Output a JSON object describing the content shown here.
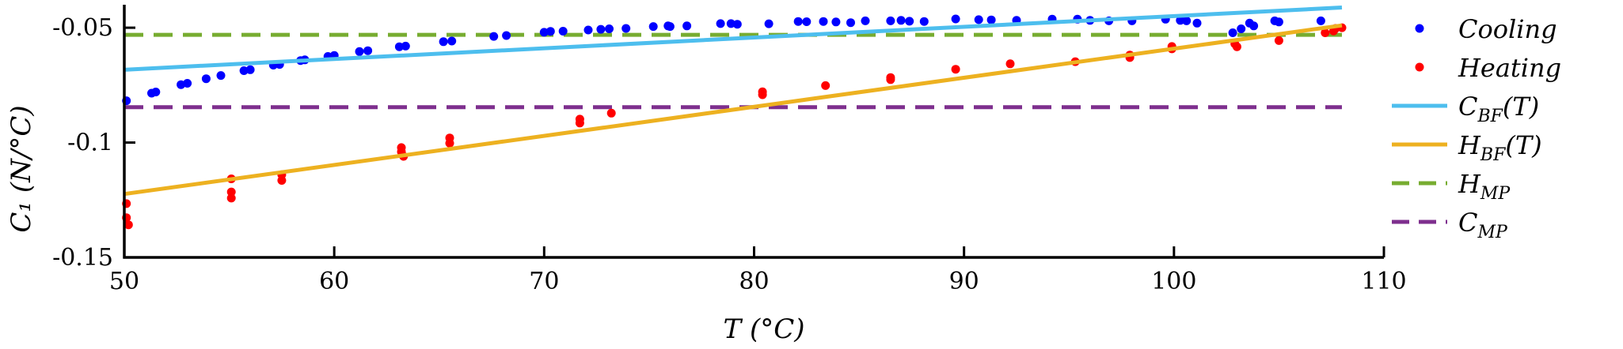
{
  "chart_data": {
    "type": "scatter",
    "xlabel": "T (°C)",
    "ylabel": "C₁ (N/°C)",
    "xlim": [
      50,
      110
    ],
    "ylim": [
      -0.15,
      -0.04
    ],
    "x_ticks": [
      50,
      60,
      70,
      80,
      90,
      100,
      110
    ],
    "y_ticks": [
      -0.05,
      -0.1,
      -0.15
    ],
    "x_tick_labels": [
      "50",
      "60",
      "70",
      "80",
      "90",
      "100",
      "110"
    ],
    "y_tick_labels": [
      "-0.05",
      "-0.1",
      "-0.15"
    ],
    "grid": false,
    "legend_position": "outside-right",
    "series": [
      {
        "name": "Cooling",
        "kind": "scatter",
        "color": "#0000ff",
        "points": [
          [
            50.1,
            -0.0818
          ],
          [
            51.3,
            -0.0785
          ],
          [
            51.5,
            -0.078
          ],
          [
            52.7,
            -0.0748
          ],
          [
            53.0,
            -0.0742
          ],
          [
            53.9,
            -0.0722
          ],
          [
            54.6,
            -0.0708
          ],
          [
            55.7,
            -0.0687
          ],
          [
            56.0,
            -0.0683
          ],
          [
            57.1,
            -0.0663
          ],
          [
            57.4,
            -0.066
          ],
          [
            58.4,
            -0.0643
          ],
          [
            58.6,
            -0.064
          ],
          [
            59.7,
            -0.0625
          ],
          [
            60.0,
            -0.0621
          ],
          [
            61.2,
            -0.0604
          ],
          [
            61.6,
            -0.06
          ],
          [
            63.1,
            -0.0583
          ],
          [
            63.4,
            -0.058
          ],
          [
            65.2,
            -0.0561
          ],
          [
            65.6,
            -0.0558
          ],
          [
            67.6,
            -0.0538
          ],
          [
            68.2,
            -0.0534
          ],
          [
            70.0,
            -0.052
          ],
          [
            70.3,
            -0.0516
          ],
          [
            70.9,
            -0.0515
          ],
          [
            72.1,
            -0.051
          ],
          [
            72.7,
            -0.0507
          ],
          [
            73.1,
            -0.0505
          ],
          [
            73.9,
            -0.0503
          ],
          [
            75.2,
            -0.0495
          ],
          [
            75.9,
            -0.0492
          ],
          [
            76.0,
            -0.0495
          ],
          [
            76.8,
            -0.0492
          ],
          [
            78.4,
            -0.0482
          ],
          [
            78.9,
            -0.0482
          ],
          [
            79.2,
            -0.0485
          ],
          [
            80.7,
            -0.0483
          ],
          [
            82.1,
            -0.0473
          ],
          [
            82.5,
            -0.0474
          ],
          [
            83.3,
            -0.0473
          ],
          [
            83.9,
            -0.0475
          ],
          [
            84.6,
            -0.0478
          ],
          [
            85.3,
            -0.047
          ],
          [
            86.5,
            -0.047
          ],
          [
            87.0,
            -0.0468
          ],
          [
            87.4,
            -0.0472
          ],
          [
            88.1,
            -0.0473
          ],
          [
            89.6,
            -0.0462
          ],
          [
            90.7,
            -0.0465
          ],
          [
            91.3,
            -0.0466
          ],
          [
            92.5,
            -0.0468
          ],
          [
            94.2,
            -0.0463
          ],
          [
            95.4,
            -0.0463
          ],
          [
            96.0,
            -0.0468
          ],
          [
            96.9,
            -0.047
          ],
          [
            98.0,
            -0.047
          ],
          [
            99.6,
            -0.0463
          ],
          [
            100.3,
            -0.0468
          ],
          [
            100.6,
            -0.047
          ],
          [
            101.1,
            -0.048
          ],
          [
            102.8,
            -0.0522
          ],
          [
            103.2,
            -0.0505
          ],
          [
            103.6,
            -0.048
          ],
          [
            103.8,
            -0.0492
          ],
          [
            104.8,
            -0.047
          ],
          [
            105.0,
            -0.0475
          ],
          [
            107.0,
            -0.047
          ]
        ]
      },
      {
        "name": "Heating",
        "kind": "scatter",
        "color": "#ff0000",
        "points": [
          [
            50.1,
            -0.1266
          ],
          [
            50.1,
            -0.1327
          ],
          [
            50.2,
            -0.1358
          ],
          [
            55.1,
            -0.1158
          ],
          [
            55.1,
            -0.1215
          ],
          [
            55.1,
            -0.1242
          ],
          [
            57.5,
            -0.114
          ],
          [
            57.5,
            -0.1165
          ],
          [
            63.2,
            -0.1022
          ],
          [
            63.2,
            -0.104
          ],
          [
            63.3,
            -0.106
          ],
          [
            65.5,
            -0.098
          ],
          [
            65.5,
            -0.1003
          ],
          [
            71.7,
            -0.0898
          ],
          [
            71.7,
            -0.0915
          ],
          [
            73.2,
            -0.0872
          ],
          [
            80.4,
            -0.0779
          ],
          [
            80.4,
            -0.0792
          ],
          [
            83.4,
            -0.0752
          ],
          [
            86.5,
            -0.0717
          ],
          [
            86.5,
            -0.0726
          ],
          [
            89.6,
            -0.0681
          ],
          [
            92.2,
            -0.0657
          ],
          [
            95.3,
            -0.0648
          ],
          [
            97.9,
            -0.0619
          ],
          [
            97.9,
            -0.063
          ],
          [
            99.9,
            -0.0582
          ],
          [
            99.9,
            -0.0592
          ],
          [
            102.9,
            -0.057
          ],
          [
            103.0,
            -0.0583
          ],
          [
            105.0,
            -0.0556
          ],
          [
            107.2,
            -0.0522
          ],
          [
            107.6,
            -0.0514
          ],
          [
            107.7,
            -0.0503
          ],
          [
            108.0,
            -0.05
          ]
        ]
      },
      {
        "name": "C_BF(T)",
        "kind": "line",
        "style": "solid",
        "color": "#4dbeee",
        "points": [
          [
            50,
            -0.0683
          ],
          [
            108,
            -0.0412
          ]
        ]
      },
      {
        "name": "H_BF(T)",
        "kind": "line",
        "style": "solid",
        "color": "#edb120",
        "points": [
          [
            50,
            -0.1224
          ],
          [
            108,
            -0.049
          ]
        ]
      },
      {
        "name": "H_MP",
        "kind": "line",
        "style": "dashed",
        "color": "#77ac30",
        "points": [
          [
            50,
            -0.0531
          ],
          [
            108,
            -0.0531
          ]
        ]
      },
      {
        "name": "C_MP",
        "kind": "line",
        "style": "dashed",
        "color": "#7e2f8e",
        "points": [
          [
            50,
            -0.0846
          ],
          [
            108,
            -0.0846
          ]
        ]
      }
    ],
    "legend": [
      {
        "label": "Cooling",
        "series": 0
      },
      {
        "label": "Heating",
        "series": 1
      },
      {
        "label": "C_BF(T)",
        "series": 2
      },
      {
        "label": "H_BF(T)",
        "series": 3
      },
      {
        "label": "H_MP",
        "series": 4
      },
      {
        "label": "C_MP",
        "series": 5
      }
    ]
  }
}
